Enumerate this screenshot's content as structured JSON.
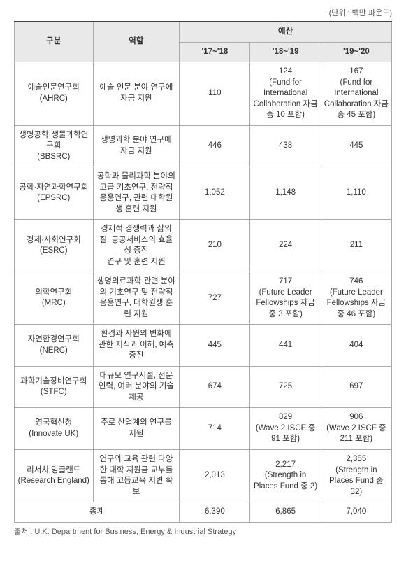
{
  "unit_label": "(단위 : 백만 파운드)",
  "headers": {
    "col1": "구분",
    "col2": "역할",
    "budget_group": "예산",
    "y1": "'17~'18",
    "y2": "'18~'19",
    "y3": "'19~'20"
  },
  "rows": [
    {
      "name": "예술인문연구회\n(AHRC)",
      "role": "예술 인문 분야 연구에 자금 지원",
      "y1": "110",
      "y2": "124\n(Fund for International Collaboration 자금 중 10 포함)",
      "y3": "167\n(Fund for International Collaboration 자금 중 45 포함)"
    },
    {
      "name": "생명공학·생물과학연구회\n(BBSRC)",
      "role": "생명과학 분야 연구에 자금 지원",
      "y1": "446",
      "y2": "438",
      "y3": "445"
    },
    {
      "name": "공학·자연과학연구회\n(EPSRC)",
      "role": "공학과 물리과학 분야의 고급 기초연구, 전략적 응용연구, 관련 대학원생 훈련 지원",
      "y1": "1,052",
      "y2": "1,148",
      "y3": "1,110"
    },
    {
      "name": "경제·사회연구회\n(ESRC)",
      "role": "경제적 경쟁력과 삶의 질, 공공서비스의 효율성 증진\n연구 및 훈련 지원",
      "y1": "210",
      "y2": "224",
      "y3": "211"
    },
    {
      "name": "의학연구회\n(MRC)",
      "role": "생명의료과학 관련 분야의 기초연구 및 전략적 응용연구, 대학원생 훈련 지원",
      "y1": "727",
      "y2": "717\n(Future Leader Fellowships 자금 중 3 포함)",
      "y3": "746\n(Future Leader Fellowships 자금 중 46 포함)"
    },
    {
      "name": "자연환경연구회\n(NERC)",
      "role": "환경과 자원의 변화에 관한 지식과 이해, 예측 증진",
      "y1": "445",
      "y2": "441",
      "y3": "404"
    },
    {
      "name": "과학기술장비연구회\n(STFC)",
      "role": "대규모 연구시설, 전문 인력, 여러 분야의 기술 제공",
      "y1": "674",
      "y2": "725",
      "y3": "697"
    },
    {
      "name": "영국혁신청\n(Innovate UK)",
      "role": "주로 산업계의 연구를 지원",
      "y1": "714",
      "y2": "829\n(Wave 2 ISCF 중 91 포함)",
      "y3": "906\n(Wave 2 ISCF 중 211 포함)"
    },
    {
      "name": "리서치 잉글랜드\n(Research England)",
      "role": "연구와 교육 관련 다양한 대학 지원금 교부를 통해 고등교육 저변 확보",
      "y1": "2,013",
      "y2": "2,217\n(Strength in Places Fund 중 2)",
      "y3": "2,355\n(Strength in Places Fund 중 32)"
    }
  ],
  "total": {
    "label": "총계",
    "y1": "6,390",
    "y2": "6,865",
    "y3": "7,040"
  },
  "source": "출처 : U.K. Department for Business, Energy & Industrial Strategy"
}
